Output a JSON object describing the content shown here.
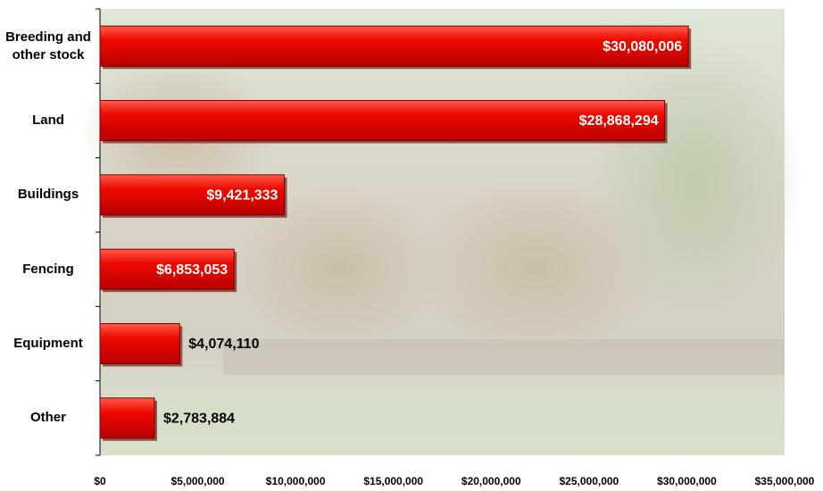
{
  "chart_data": {
    "type": "bar",
    "orientation": "horizontal",
    "categories": [
      "Breeding and other stock",
      "Land",
      "Buildings",
      "Fencing",
      "Equipment",
      "Other"
    ],
    "values": [
      30080006,
      28868294,
      9421333,
      6853053,
      4074110,
      2783884
    ],
    "value_labels": [
      "$30,080,006",
      "$28,868,294",
      "$9,421,333",
      "$6,853,053",
      "$4,074,110",
      "$2,783,884"
    ],
    "color": "#e00000",
    "xlim": [
      0,
      35000000
    ],
    "xticks": [
      {
        "value": 0,
        "label": "$0"
      },
      {
        "value": 5000000,
        "label": "$5,000,000"
      },
      {
        "value": 10000000,
        "label": "$10,000,000"
      },
      {
        "value": 15000000,
        "label": "$15,000,000"
      },
      {
        "value": 20000000,
        "label": "$20,000,000"
      },
      {
        "value": 25000000,
        "label": "$25,000,000"
      },
      {
        "value": 30000000,
        "label": "$30,000,000"
      },
      {
        "value": 35000000,
        "label": "$35,000,000"
      }
    ],
    "grid": false
  }
}
